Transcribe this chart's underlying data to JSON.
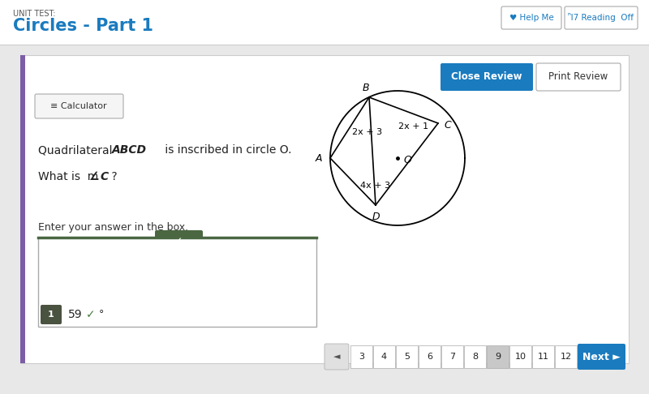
{
  "title_label": "UNIT TEST:",
  "title_main": "Circles - Part 1",
  "title_color": "#1a7bbf",
  "bg_color": "#e8e8e8",
  "content_bg": "#ffffff",
  "left_bar_color": "#7b5ea7",
  "header_bg": "#ffffff",
  "close_review_btn_color": "#1a7bbf",
  "close_review_btn_text": "Close Review",
  "print_review_btn_text": "Print Review",
  "help_icon": "♥",
  "help_text": "Help Me",
  "reading_text": "Reading  Off",
  "calculator_text": "Calculator",
  "problem_text_1": "Quadrilateral ",
  "problem_italic": "ABCD",
  "problem_text_2": " is inscribed in circle O.",
  "angle_text": "What is  m",
  "angle_symbol": "∠",
  "angle_var": "C",
  "angle_question_mark": " ?",
  "enter_text": "Enter your answer in the box.",
  "answer_value": "59",
  "degree_symbol": "°",
  "nav_numbers": [
    "3",
    "4",
    "5",
    "6",
    "7",
    "8",
    "9",
    "10",
    "11",
    "12"
  ],
  "nav_active": "9",
  "nav_active_color": "#c8c8c8",
  "next_btn_color": "#1a7bbf",
  "prev_symbol": "◄",
  "next_text": "Next ►",
  "tick_color": "#4a7c3f",
  "check_tab_color": "#4a6741",
  "badge_bg": "#4a5240"
}
